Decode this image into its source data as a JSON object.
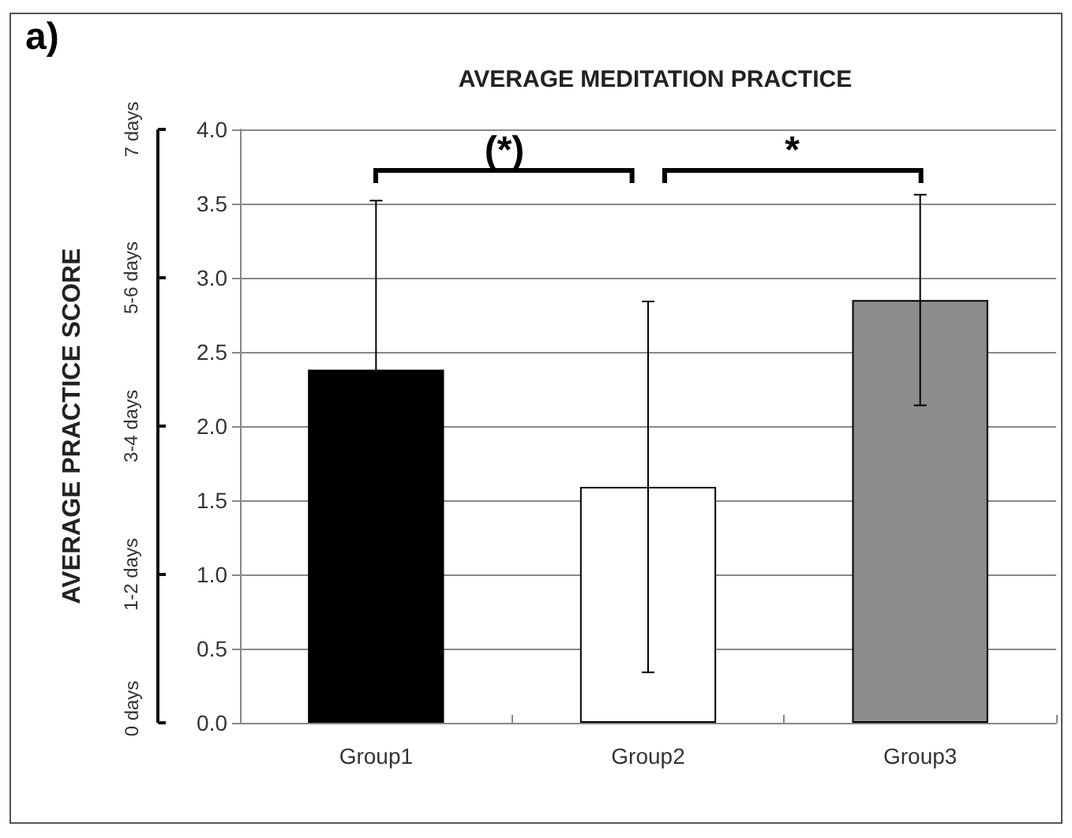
{
  "chart_data": {
    "type": "bar",
    "title": "AVERAGE MEDITATION PRACTICE",
    "ylabel": "AVERAGE PRACTICE SCORE",
    "categories": [
      "Group1",
      "Group2",
      "Group3"
    ],
    "values": [
      2.38,
      1.59,
      2.85
    ],
    "colors": [
      "#000000",
      "#ffffff",
      "#8c8c8c"
    ],
    "errors": [
      1.14,
      1.25,
      0.71
    ],
    "ylim": [
      0,
      4
    ],
    "yticks": [
      {
        "value": 0,
        "label": "0.0"
      },
      0.5,
      {
        "value": 1,
        "label": "1.0"
      },
      1.5,
      {
        "value": 2,
        "label": "2.0"
      },
      2.5,
      {
        "value": 3,
        "label": "3.0"
      },
      3.5,
      {
        "value": 4,
        "label": "4.0"
      }
    ],
    "grid": "y",
    "annotations": [
      "a)",
      "(*)",
      "*",
      "0 days",
      "1-2 days",
      "3-4 days",
      "5-6 days",
      "7 days"
    ]
  }
}
